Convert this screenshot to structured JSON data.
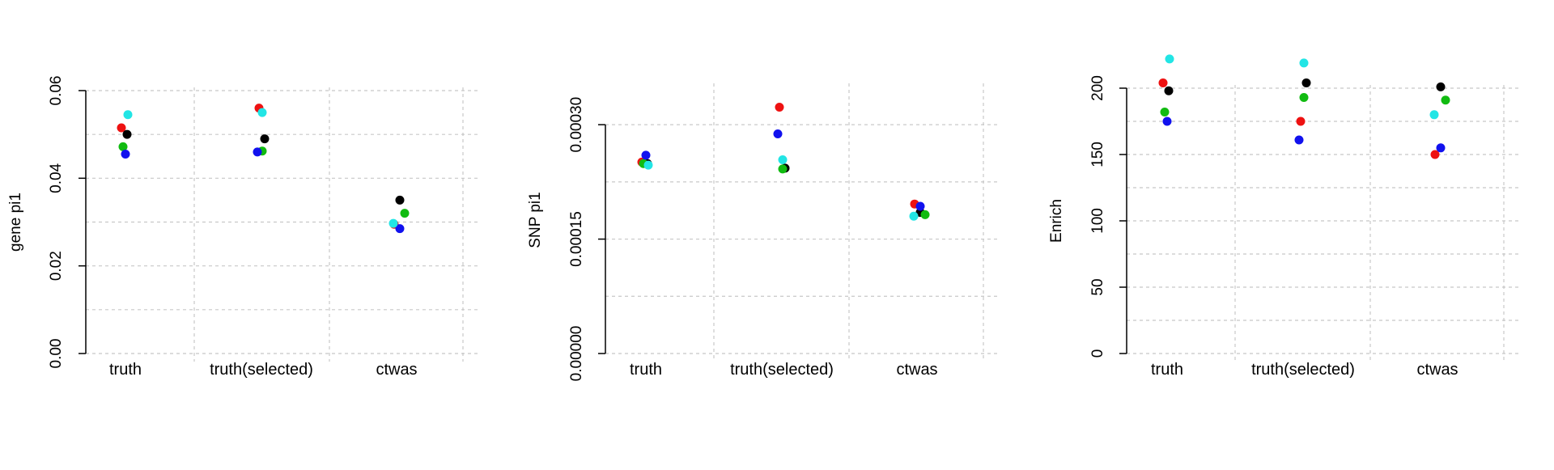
{
  "colors": {
    "red": "#ee1111",
    "black": "#000000",
    "green": "#11bb11",
    "blue": "#1111ee",
    "cyan": "#22e5e5",
    "grid": "#c8c8c8",
    "axis": "#000000"
  },
  "chart_data": [
    {
      "type": "scatter",
      "ylabel": "gene pi1",
      "categories": [
        "truth",
        "truth(selected)",
        "ctwas"
      ],
      "ylim": [
        0,
        0.06
      ],
      "yticks": [
        0.0,
        0.02,
        0.04,
        0.06
      ],
      "ytick_labels": [
        "0.00",
        "0.02",
        "0.04",
        "0.06"
      ],
      "grid": true,
      "series": [
        {
          "color": "red",
          "values": [
            0.0515,
            0.056,
            0.0295
          ]
        },
        {
          "color": "black",
          "values": [
            0.05,
            0.049,
            0.035
          ]
        },
        {
          "color": "green",
          "values": [
            0.0472,
            0.0462,
            0.032
          ]
        },
        {
          "color": "blue",
          "values": [
            0.0455,
            0.046,
            0.0285
          ]
        },
        {
          "color": "cyan",
          "values": [
            0.0545,
            0.055,
            0.0297
          ]
        }
      ]
    },
    {
      "type": "scatter",
      "ylabel": "SNP pi1",
      "categories": [
        "truth",
        "truth(selected)",
        "ctwas"
      ],
      "ylim": [
        0,
        0.00035
      ],
      "yticks": [
        0.0,
        0.00015,
        0.0003
      ],
      "ytick_labels": [
        "0.00000",
        "0.00015",
        "0.00030"
      ],
      "grid": true,
      "series": [
        {
          "color": "red",
          "values": [
            0.000251,
            0.000323,
            0.000196
          ]
        },
        {
          "color": "black",
          "values": [
            0.000249,
            0.000243,
            0.000185
          ]
        },
        {
          "color": "green",
          "values": [
            0.000249,
            0.000242,
            0.000182
          ]
        },
        {
          "color": "blue",
          "values": [
            0.00026,
            0.000288,
            0.000193
          ]
        },
        {
          "color": "cyan",
          "values": [
            0.000247,
            0.000254,
            0.00018
          ]
        }
      ]
    },
    {
      "type": "scatter",
      "ylabel": "Enrich",
      "categories": [
        "truth",
        "truth(selected)",
        "ctwas"
      ],
      "ylim": [
        0,
        200
      ],
      "yticks": [
        0,
        50,
        100,
        150,
        200
      ],
      "ytick_labels": [
        "0",
        "50",
        "100",
        "150",
        "200"
      ],
      "grid": true,
      "series": [
        {
          "color": "red",
          "values": [
            204,
            175,
            150
          ]
        },
        {
          "color": "black",
          "values": [
            198,
            204,
            201
          ]
        },
        {
          "color": "green",
          "values": [
            182,
            193,
            191
          ]
        },
        {
          "color": "blue",
          "values": [
            175,
            161,
            155
          ]
        },
        {
          "color": "cyan",
          "values": [
            222,
            219,
            180
          ]
        }
      ]
    }
  ]
}
